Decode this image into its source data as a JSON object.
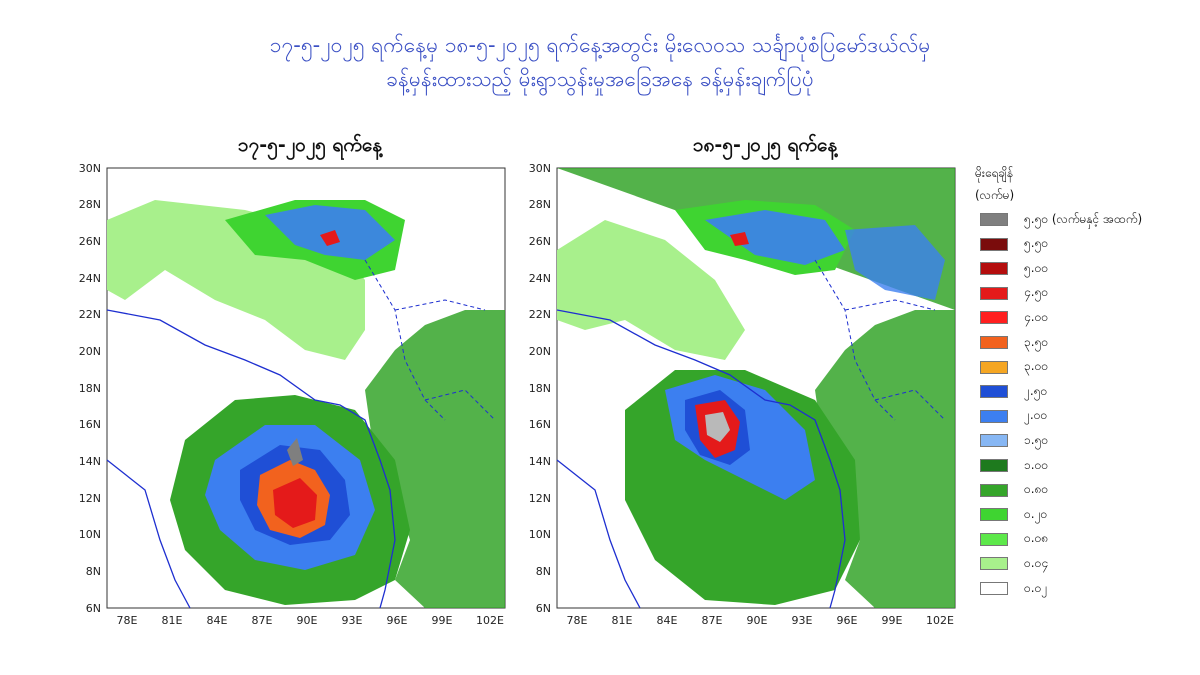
{
  "title_line1": "၁၇-၅-၂၀၂၅ ရက်နေ့မှ ၁၈-၅-၂၀၂၅ ရက်နေ့အတွင်း မိုးလေဝသ သင်္ချာပုံစံပြမော်ဒယ်လ်မှ",
  "title_line2": "ခန့်မှန်းထားသည့် မိုးရွာသွန်းမှုအခြေအနေ ခန့်မှန်းချက်ပြပုံ",
  "panels": [
    {
      "title": "၁၇-၅-၂၀၂၅ ရက်နေ့"
    },
    {
      "title": "၁၈-၅-၂၀၂၅ ရက်နေ့"
    }
  ],
  "axes": {
    "lat_labels": [
      "30N",
      "28N",
      "26N",
      "24N",
      "22N",
      "20N",
      "18N",
      "16N",
      "14N",
      "12N",
      "10N",
      "8N",
      "6N"
    ],
    "lon_labels": [
      "78E",
      "81E",
      "84E",
      "87E",
      "90E",
      "93E",
      "96E",
      "99E",
      "102E"
    ]
  },
  "legend": {
    "title_line1": "မိုးရေချိန်",
    "title_line2": "(လက်မ)",
    "items": [
      {
        "label": "၅.၅၀ (လက်မနှင့် အထက်)",
        "color": "#7f7f7f"
      },
      {
        "label": "၅.၅၀",
        "color": "#7a0c0c"
      },
      {
        "label": "၅.၀၀",
        "color": "#b40d0d"
      },
      {
        "label": "၄.၅၀",
        "color": "#e41a1a"
      },
      {
        "label": "၄.၀၀",
        "color": "#ff1f1f"
      },
      {
        "label": "၃.၅၀",
        "color": "#f2621e"
      },
      {
        "label": "၃.၀၀",
        "color": "#f5a623"
      },
      {
        "label": "၂.၅၀",
        "color": "#1f4fd6"
      },
      {
        "label": "၂.၀၀",
        "color": "#3c7ff0"
      },
      {
        "label": "၁.၅၀",
        "color": "#87b7f4"
      },
      {
        "label": "၁.၀၀",
        "color": "#1e7a1e"
      },
      {
        "label": "၀.၈၀",
        "color": "#35a52a"
      },
      {
        "label": "၀.၂၀",
        "color": "#3fd431"
      },
      {
        "label": "၀.၀၈",
        "color": "#5de84a"
      },
      {
        "label": "၀.၀၄",
        "color": "#a8f08c"
      },
      {
        "label": "၀.၀၂",
        "color": "#ffffff"
      }
    ]
  }
}
